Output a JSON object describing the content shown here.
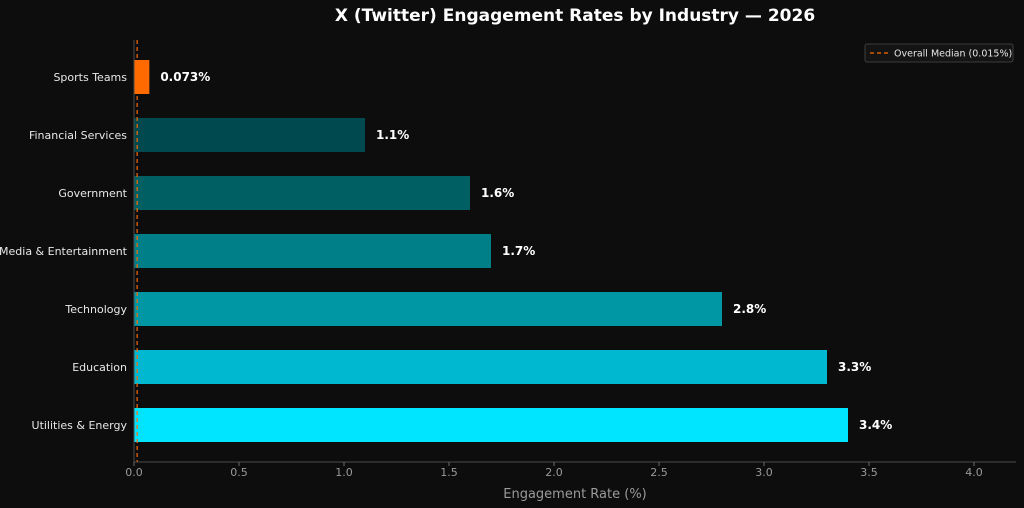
{
  "chart_data": {
    "type": "bar",
    "orientation": "horizontal",
    "title": "X (Twitter) Engagement Rates by Industry — 2026",
    "xlabel": "Engagement Rate (%)",
    "ylabel": "",
    "xlim": [
      0,
      4.2
    ],
    "xticks": [
      0.0,
      0.5,
      1.0,
      1.5,
      2.0,
      2.5,
      3.0,
      3.5,
      4.0
    ],
    "xtick_labels": [
      "0.0",
      "0.5",
      "1.0",
      "1.5",
      "2.0",
      "2.5",
      "3.0",
      "3.5",
      "4.0"
    ],
    "grid": false,
    "legend_position": "top-right",
    "categories": [
      "Sports Teams",
      "Financial Services",
      "Government",
      "Media & Entertainment",
      "Technology",
      "Education",
      "Utilities & Energy"
    ],
    "values": [
      0.073,
      1.1,
      1.6,
      1.7,
      2.8,
      3.3,
      3.4
    ],
    "value_labels": [
      "0.073%",
      "1.1%",
      "1.6%",
      "1.7%",
      "2.8%",
      "3.3%",
      "3.4%"
    ],
    "colors": [
      "#ff6a00",
      "#004a4f",
      "#005f62",
      "#007f89",
      "#0097a5",
      "#00b8d0",
      "#00e5ff"
    ],
    "reference_line": {
      "value": 0.015,
      "label": "Overall Median (0.015%)",
      "color": "#ff6a00",
      "style": "dashed"
    }
  }
}
